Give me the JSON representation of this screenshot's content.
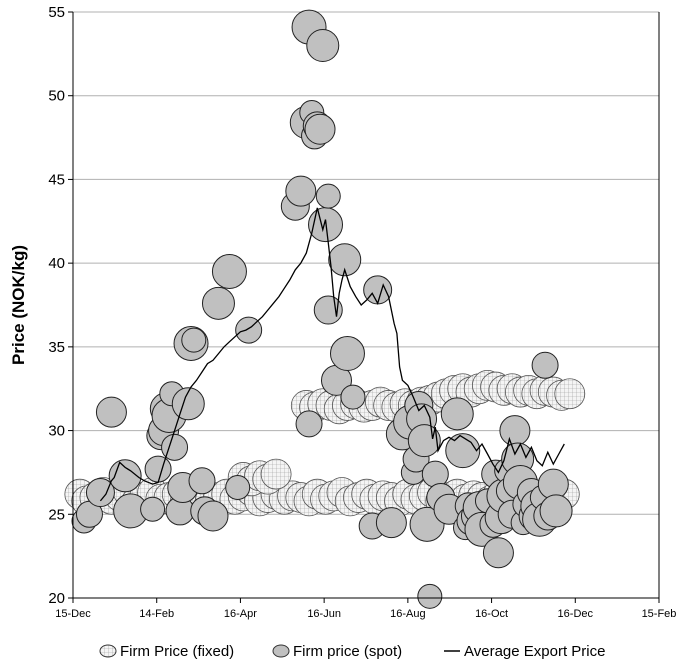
{
  "chart_data": {
    "type": "scatter",
    "title": "",
    "xlabel": "",
    "ylabel": "Price (NOK/kg)",
    "x_ticks": [
      "15-Dec",
      "14-Feb",
      "16-Apr",
      "16-Jun",
      "16-Aug",
      "16-Oct",
      "16-Dec",
      "15-Feb"
    ],
    "x_range_days": [
      0,
      427
    ],
    "ylim": [
      20,
      55
    ],
    "y_ticks": [
      20,
      25,
      30,
      35,
      40,
      45,
      50,
      55
    ],
    "grid": "horizontal",
    "legend_position": "bottom",
    "colors": {
      "fixed": "#e8e8e8",
      "spot": "#c0c0c0",
      "line": "#000000",
      "grid": "#b0b0b0"
    },
    "series": [
      {
        "name": "Firm Price (fixed)",
        "kind": "bubble",
        "points": [
          [
            5,
            26.2
          ],
          [
            10,
            25.8
          ],
          [
            16,
            26.0
          ],
          [
            22,
            26.3
          ],
          [
            28,
            25.9
          ],
          [
            34,
            26.1
          ],
          [
            40,
            26.4
          ],
          [
            46,
            25.7
          ],
          [
            52,
            26.0
          ],
          [
            58,
            26.3
          ],
          [
            64,
            25.9
          ],
          [
            70,
            26.0
          ],
          [
            76,
            26.2
          ],
          [
            82,
            25.8
          ],
          [
            88,
            26.1
          ],
          [
            94,
            26.3
          ],
          [
            100,
            25.8
          ],
          [
            106,
            26.0
          ],
          [
            112,
            26.2
          ],
          [
            118,
            25.9
          ],
          [
            124,
            26.1
          ],
          [
            130,
            26.4
          ],
          [
            136,
            25.8
          ],
          [
            142,
            26.0
          ],
          [
            148,
            26.2
          ],
          [
            154,
            25.9
          ],
          [
            160,
            26.1
          ],
          [
            166,
            26.0
          ],
          [
            172,
            25.8
          ],
          [
            178,
            26.2
          ],
          [
            184,
            25.9
          ],
          [
            190,
            26.1
          ],
          [
            196,
            26.3
          ],
          [
            202,
            25.8
          ],
          [
            208,
            26.0
          ],
          [
            214,
            26.2
          ],
          [
            220,
            25.9
          ],
          [
            226,
            26.1
          ],
          [
            232,
            26.0
          ],
          [
            238,
            25.8
          ],
          [
            244,
            26.2
          ],
          [
            250,
            25.9
          ],
          [
            256,
            26.1
          ],
          [
            262,
            26.3
          ],
          [
            268,
            25.8
          ],
          [
            274,
            26.0
          ],
          [
            280,
            26.2
          ],
          [
            286,
            25.9
          ],
          [
            292,
            26.1
          ],
          [
            298,
            26.0
          ],
          [
            304,
            25.8
          ],
          [
            310,
            26.2
          ],
          [
            316,
            25.9
          ],
          [
            322,
            26.1
          ],
          [
            328,
            26.0
          ],
          [
            334,
            26.2
          ],
          [
            340,
            25.9
          ],
          [
            346,
            26.1
          ],
          [
            352,
            26.0
          ],
          [
            358,
            26.2
          ],
          [
            124,
            27.2
          ],
          [
            130,
            27.0
          ],
          [
            136,
            27.3
          ],
          [
            142,
            27.1
          ],
          [
            148,
            27.4
          ],
          [
            170,
            31.5
          ],
          [
            176,
            31.4
          ],
          [
            182,
            31.6
          ],
          [
            188,
            31.5
          ],
          [
            194,
            31.3
          ],
          [
            200,
            31.5
          ],
          [
            206,
            31.6
          ],
          [
            212,
            31.4
          ],
          [
            218,
            31.5
          ],
          [
            224,
            31.7
          ],
          [
            230,
            31.5
          ],
          [
            236,
            31.4
          ],
          [
            242,
            31.6
          ],
          [
            248,
            31.5
          ],
          [
            254,
            31.7
          ],
          [
            260,
            31.8
          ],
          [
            266,
            32.0
          ],
          [
            272,
            32.2
          ],
          [
            278,
            32.4
          ],
          [
            284,
            32.5
          ],
          [
            290,
            32.3
          ],
          [
            296,
            32.5
          ],
          [
            302,
            32.7
          ],
          [
            308,
            32.6
          ],
          [
            314,
            32.4
          ],
          [
            320,
            32.5
          ],
          [
            326,
            32.3
          ],
          [
            332,
            32.4
          ],
          [
            338,
            32.2
          ],
          [
            344,
            32.4
          ],
          [
            350,
            32.3
          ],
          [
            356,
            32.1
          ],
          [
            362,
            32.2
          ]
        ]
      },
      {
        "name": "Firm price (spot)",
        "kind": "bubble",
        "points": [
          [
            8,
            24.6
          ],
          [
            12,
            25.0
          ],
          [
            20,
            26.3
          ],
          [
            28,
            31.1
          ],
          [
            38,
            27.3
          ],
          [
            42,
            25.2
          ],
          [
            58,
            25.3
          ],
          [
            62,
            27.7
          ],
          [
            64,
            29.7
          ],
          [
            66,
            30.0
          ],
          [
            68,
            31.3
          ],
          [
            70,
            30.9
          ],
          [
            72,
            32.2
          ],
          [
            74,
            29.0
          ],
          [
            78,
            25.2
          ],
          [
            80,
            26.6
          ],
          [
            84,
            31.6
          ],
          [
            86,
            35.2
          ],
          [
            88,
            35.4
          ],
          [
            94,
            27.0
          ],
          [
            96,
            25.2
          ],
          [
            102,
            24.9
          ],
          [
            106,
            37.6
          ],
          [
            114,
            39.5
          ],
          [
            120,
            26.6
          ],
          [
            128,
            36.0
          ],
          [
            162,
            43.4
          ],
          [
            166,
            44.3
          ],
          [
            170,
            48.4
          ],
          [
            172,
            54.1
          ],
          [
            174,
            49.0
          ],
          [
            176,
            47.6
          ],
          [
            178,
            48.2
          ],
          [
            180,
            48.0
          ],
          [
            182,
            53.0
          ],
          [
            184,
            42.3
          ],
          [
            186,
            44.0
          ],
          [
            172,
            30.4
          ],
          [
            186,
            37.2
          ],
          [
            192,
            33.0
          ],
          [
            198,
            40.2
          ],
          [
            200,
            34.6
          ],
          [
            204,
            32.0
          ],
          [
            218,
            24.3
          ],
          [
            222,
            38.4
          ],
          [
            232,
            24.5
          ],
          [
            240,
            29.8
          ],
          [
            246,
            30.5
          ],
          [
            248,
            27.5
          ],
          [
            250,
            28.3
          ],
          [
            252,
            31.5
          ],
          [
            254,
            30.7
          ],
          [
            256,
            29.4
          ],
          [
            258,
            24.4
          ],
          [
            260,
            20.1
          ],
          [
            264,
            27.4
          ],
          [
            268,
            26.0
          ],
          [
            274,
            25.3
          ],
          [
            280,
            31.0
          ],
          [
            284,
            28.8
          ],
          [
            286,
            24.2
          ],
          [
            288,
            25.5
          ],
          [
            290,
            24.6
          ],
          [
            294,
            24.9
          ],
          [
            296,
            25.4
          ],
          [
            298,
            24.1
          ],
          [
            302,
            25.8
          ],
          [
            306,
            24.4
          ],
          [
            308,
            27.4
          ],
          [
            310,
            22.7
          ],
          [
            312,
            24.8
          ],
          [
            314,
            26.1
          ],
          [
            316,
            27.6
          ],
          [
            318,
            26.4
          ],
          [
            320,
            25.0
          ],
          [
            322,
            30.0
          ],
          [
            324,
            28.3
          ],
          [
            326,
            26.9
          ],
          [
            328,
            24.5
          ],
          [
            330,
            25.6
          ],
          [
            334,
            26.3
          ],
          [
            336,
            24.9
          ],
          [
            338,
            25.5
          ],
          [
            340,
            24.7
          ],
          [
            342,
            26.0
          ],
          [
            344,
            33.9
          ],
          [
            346,
            24.9
          ],
          [
            350,
            26.8
          ],
          [
            352,
            25.2
          ]
        ]
      },
      {
        "name": "Average Export Price",
        "kind": "line",
        "points": [
          [
            20,
            25.8
          ],
          [
            24,
            26.2
          ],
          [
            28,
            27.0
          ],
          [
            30,
            27.2
          ],
          [
            34,
            28.1
          ],
          [
            38,
            27.8
          ],
          [
            42,
            27.6
          ],
          [
            48,
            27.2
          ],
          [
            52,
            27.0
          ],
          [
            58,
            26.8
          ],
          [
            62,
            26.9
          ],
          [
            66,
            28.0
          ],
          [
            70,
            29.0
          ],
          [
            74,
            30.0
          ],
          [
            78,
            31.0
          ],
          [
            82,
            32.0
          ],
          [
            86,
            32.6
          ],
          [
            90,
            33.0
          ],
          [
            94,
            33.5
          ],
          [
            98,
            34.0
          ],
          [
            102,
            34.2
          ],
          [
            106,
            34.6
          ],
          [
            110,
            35.0
          ],
          [
            114,
            35.3
          ],
          [
            118,
            35.6
          ],
          [
            122,
            35.9
          ],
          [
            126,
            36.0
          ],
          [
            130,
            36.2
          ],
          [
            134,
            36.5
          ],
          [
            138,
            36.8
          ],
          [
            142,
            37.2
          ],
          [
            146,
            37.6
          ],
          [
            150,
            38.0
          ],
          [
            154,
            38.5
          ],
          [
            158,
            39.0
          ],
          [
            162,
            39.6
          ],
          [
            166,
            40.0
          ],
          [
            170,
            40.6
          ],
          [
            174,
            41.8
          ],
          [
            178,
            43.3
          ],
          [
            182,
            42.0
          ],
          [
            184,
            42.6
          ],
          [
            186,
            41.2
          ],
          [
            188,
            39.8
          ],
          [
            190,
            38.0
          ],
          [
            192,
            36.8
          ],
          [
            194,
            38.2
          ],
          [
            196,
            39.0
          ],
          [
            198,
            39.6
          ],
          [
            202,
            38.6
          ],
          [
            206,
            38.0
          ],
          [
            210,
            37.5
          ],
          [
            214,
            37.8
          ],
          [
            218,
            38.2
          ],
          [
            222,
            37.6
          ],
          [
            226,
            38.7
          ],
          [
            230,
            38.0
          ],
          [
            234,
            36.4
          ],
          [
            236,
            35.8
          ],
          [
            238,
            33.8
          ],
          [
            240,
            33.0
          ],
          [
            244,
            32.7
          ],
          [
            248,
            32.0
          ],
          [
            252,
            31.2
          ],
          [
            256,
            31.5
          ],
          [
            260,
            30.8
          ],
          [
            262,
            29.5
          ],
          [
            264,
            30.2
          ],
          [
            266,
            28.8
          ],
          [
            270,
            29.4
          ],
          [
            274,
            29.6
          ],
          [
            278,
            29.4
          ],
          [
            282,
            29.7
          ],
          [
            286,
            29.5
          ],
          [
            290,
            29.3
          ],
          [
            294,
            28.8
          ],
          [
            298,
            29.2
          ],
          [
            302,
            28.6
          ],
          [
            306,
            28.0
          ],
          [
            310,
            27.5
          ],
          [
            314,
            28.2
          ],
          [
            318,
            29.5
          ],
          [
            322,
            28.6
          ],
          [
            326,
            29.2
          ],
          [
            330,
            28.4
          ],
          [
            334,
            29.0
          ],
          [
            338,
            28.2
          ],
          [
            342,
            27.9
          ],
          [
            346,
            28.7
          ],
          [
            350,
            28.0
          ],
          [
            354,
            28.6
          ],
          [
            358,
            29.2
          ]
        ]
      }
    ]
  }
}
